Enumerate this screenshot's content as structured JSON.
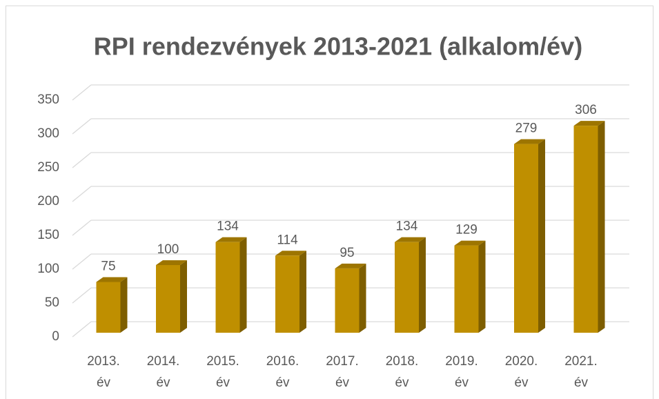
{
  "chart_data": {
    "type": "bar",
    "title": "RPI rendezvények 2013-2021 (alkalom/év)",
    "categories": [
      "2013. év",
      "2014. év",
      "2015. év",
      "2016. év",
      "2017. év",
      "2018. év",
      "2019. év",
      "2020. év",
      "2021. év"
    ],
    "values": [
      75,
      100,
      134,
      114,
      95,
      134,
      129,
      279,
      306
    ],
    "color": "#bf8f00",
    "ylim": [
      0,
      350
    ],
    "yticks": [
      0,
      50,
      100,
      150,
      200,
      250,
      300,
      350
    ],
    "grid": true
  }
}
